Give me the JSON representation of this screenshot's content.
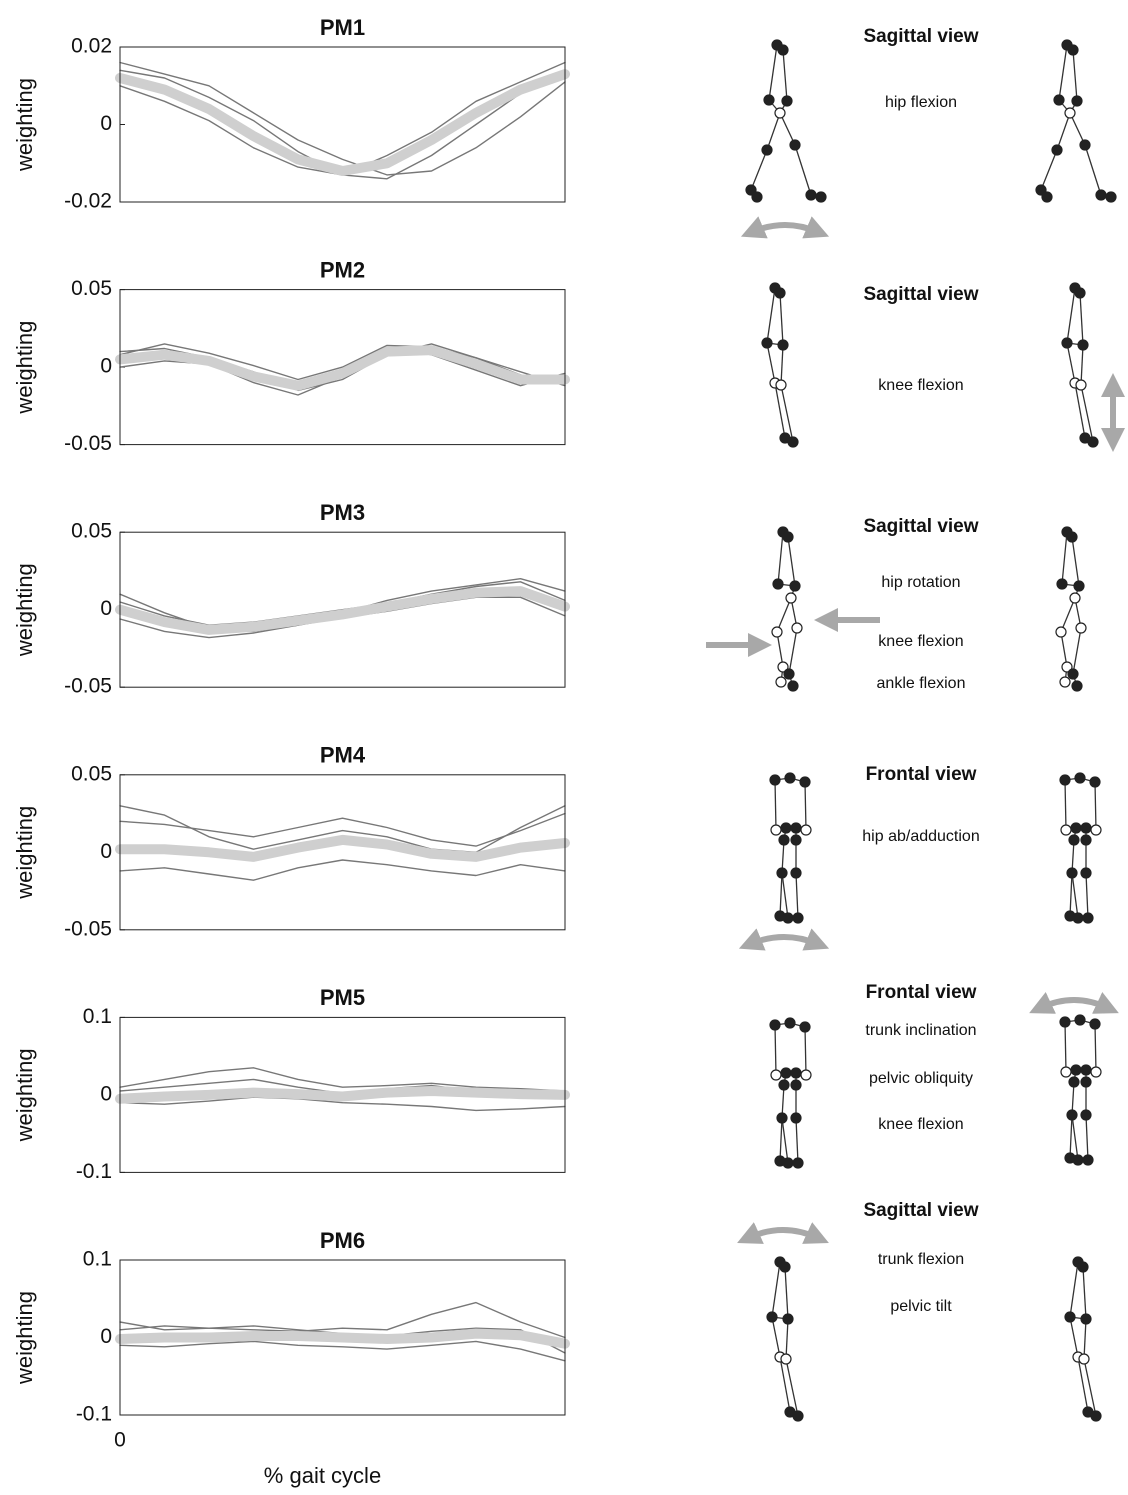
{
  "chart_data": [
    {
      "type": "line",
      "title": "PM1",
      "ylabel": "weighting",
      "x": [
        0,
        10,
        20,
        30,
        40,
        50,
        60,
        70,
        80,
        90,
        100
      ],
      "xlim": [
        0,
        100
      ],
      "ylim": [
        -0.02,
        0.02
      ],
      "yticks": [
        -0.02,
        0,
        0.02
      ],
      "series": [
        {
          "color": "#777777",
          "values": [
            0.014,
            0.012,
            0.007,
            0.001,
            -0.007,
            -0.013,
            -0.014,
            -0.008,
            0.0,
            0.008,
            0.014
          ]
        },
        {
          "color": "#777777",
          "values": [
            0.01,
            0.006,
            0.001,
            -0.006,
            -0.011,
            -0.013,
            -0.008,
            -0.002,
            0.006,
            0.011,
            0.016
          ]
        },
        {
          "color": "#777777",
          "values": [
            0.016,
            0.013,
            0.01,
            0.003,
            -0.004,
            -0.009,
            -0.013,
            -0.012,
            -0.006,
            0.002,
            0.011
          ]
        },
        {
          "color": "#cfcfcf",
          "values": [
            0.012,
            0.009,
            0.004,
            -0.003,
            -0.009,
            -0.012,
            -0.01,
            -0.004,
            0.003,
            0.009,
            0.013
          ]
        }
      ]
    },
    {
      "type": "line",
      "title": "PM2",
      "ylabel": "weighting",
      "x": [
        0,
        10,
        20,
        30,
        40,
        50,
        60,
        70,
        80,
        90,
        100
      ],
      "xlim": [
        0,
        100
      ],
      "ylim": [
        -0.05,
        0.05
      ],
      "yticks": [
        -0.05,
        0,
        0.05
      ],
      "series": [
        {
          "color": "#777777",
          "values": [
            0.01,
            0.012,
            0.006,
            -0.003,
            -0.015,
            -0.008,
            0.008,
            0.015,
            0.006,
            -0.005,
            -0.01
          ]
        },
        {
          "color": "#777777",
          "values": [
            0.0,
            0.004,
            0.002,
            -0.01,
            -0.018,
            -0.006,
            0.012,
            0.008,
            -0.002,
            -0.012,
            -0.004
          ]
        },
        {
          "color": "#777777",
          "values": [
            0.008,
            0.015,
            0.009,
            0.001,
            -0.008,
            0.0,
            0.014,
            0.013,
            0.006,
            -0.003,
            -0.012
          ]
        },
        {
          "color": "#cfcfcf",
          "values": [
            0.005,
            0.008,
            0.004,
            -0.006,
            -0.012,
            -0.004,
            0.01,
            0.011,
            0.002,
            -0.008,
            -0.008
          ]
        }
      ]
    },
    {
      "type": "line",
      "title": "PM3",
      "ylabel": "weighting",
      "x": [
        0,
        10,
        20,
        30,
        40,
        50,
        60,
        70,
        80,
        90,
        100
      ],
      "xlim": [
        0,
        100
      ],
      "ylim": [
        -0.05,
        0.05
      ],
      "yticks": [
        -0.05,
        0,
        0.05
      ],
      "series": [
        {
          "color": "#777777",
          "values": [
            0.005,
            -0.004,
            -0.01,
            -0.008,
            -0.004,
            0.0,
            0.004,
            0.01,
            0.015,
            0.018,
            0.006
          ]
        },
        {
          "color": "#777777",
          "values": [
            -0.006,
            -0.014,
            -0.018,
            -0.015,
            -0.01,
            -0.005,
            -0.001,
            0.004,
            0.008,
            0.008,
            -0.004
          ]
        },
        {
          "color": "#777777",
          "values": [
            0.01,
            -0.002,
            -0.012,
            -0.014,
            -0.01,
            -0.002,
            0.006,
            0.012,
            0.016,
            0.02,
            0.012
          ]
        },
        {
          "color": "#cfcfcf",
          "values": [
            0.0,
            -0.008,
            -0.013,
            -0.011,
            -0.007,
            -0.003,
            0.002,
            0.007,
            0.011,
            0.012,
            0.002
          ]
        }
      ]
    },
    {
      "type": "line",
      "title": "PM4",
      "ylabel": "weighting",
      "x": [
        0,
        10,
        20,
        30,
        40,
        50,
        60,
        70,
        80,
        90,
        100
      ],
      "xlim": [
        0,
        100
      ],
      "ylim": [
        -0.05,
        0.05
      ],
      "yticks": [
        -0.05,
        0,
        0.05
      ],
      "series": [
        {
          "color": "#777777",
          "values": [
            0.02,
            0.018,
            0.014,
            0.01,
            0.016,
            0.022,
            0.016,
            0.008,
            0.004,
            0.014,
            0.025
          ]
        },
        {
          "color": "#777777",
          "values": [
            -0.012,
            -0.01,
            -0.014,
            -0.018,
            -0.01,
            -0.005,
            -0.008,
            -0.012,
            -0.015,
            -0.008,
            -0.012
          ]
        },
        {
          "color": "#777777",
          "values": [
            0.03,
            0.024,
            0.01,
            0.002,
            0.008,
            0.014,
            0.01,
            0.002,
            0.0,
            0.016,
            0.03
          ]
        },
        {
          "color": "#cfcfcf",
          "values": [
            0.002,
            0.002,
            0.0,
            -0.003,
            0.003,
            0.008,
            0.005,
            -0.001,
            -0.003,
            0.003,
            0.006
          ]
        }
      ]
    },
    {
      "type": "line",
      "title": "PM5",
      "ylabel": "weighting",
      "x": [
        0,
        10,
        20,
        30,
        40,
        50,
        60,
        70,
        80,
        90,
        100
      ],
      "xlim": [
        0,
        100
      ],
      "ylim": [
        -0.1,
        0.1
      ],
      "yticks": [
        -0.1,
        0,
        0.1
      ],
      "series": [
        {
          "color": "#777777",
          "values": [
            0.01,
            0.02,
            0.03,
            0.035,
            0.02,
            0.01,
            0.012,
            0.015,
            0.01,
            0.008,
            0.005
          ]
        },
        {
          "color": "#777777",
          "values": [
            -0.01,
            -0.012,
            -0.008,
            -0.003,
            -0.005,
            -0.01,
            -0.012,
            -0.015,
            -0.02,
            -0.018,
            -0.015
          ]
        },
        {
          "color": "#777777",
          "values": [
            0.005,
            0.01,
            0.015,
            0.02,
            0.01,
            0.002,
            0.008,
            0.012,
            0.005,
            0.0,
            -0.005
          ]
        },
        {
          "color": "#cfcfcf",
          "values": [
            -0.005,
            -0.002,
            0.0,
            0.003,
            0.001,
            -0.002,
            0.003,
            0.005,
            0.003,
            0.001,
            0.0
          ]
        }
      ]
    },
    {
      "type": "line",
      "title": "PM6",
      "ylabel": "weighting",
      "xlabel": "% gait cycle",
      "x": [
        0,
        10,
        20,
        30,
        40,
        50,
        60,
        70,
        80,
        90,
        100
      ],
      "xlim": [
        0,
        100
      ],
      "xticks": [
        0
      ],
      "ylim": [
        -0.1,
        0.1
      ],
      "yticks": [
        -0.1,
        0,
        0.1
      ],
      "series": [
        {
          "color": "#777777",
          "values": [
            0.01,
            0.015,
            0.012,
            0.01,
            0.008,
            0.012,
            0.01,
            0.03,
            0.045,
            0.02,
            0.0
          ]
        },
        {
          "color": "#777777",
          "values": [
            -0.01,
            -0.012,
            -0.008,
            -0.005,
            -0.01,
            -0.012,
            -0.015,
            -0.01,
            -0.005,
            -0.015,
            -0.03
          ]
        },
        {
          "color": "#777777",
          "values": [
            0.02,
            0.01,
            0.012,
            0.015,
            0.01,
            0.005,
            0.002,
            0.008,
            0.012,
            0.01,
            -0.02
          ]
        },
        {
          "color": "#cfcfcf",
          "values": [
            -0.002,
            0.0,
            0.0,
            0.002,
            0.002,
            0.0,
            -0.002,
            0.0,
            0.005,
            0.003,
            -0.008
          ]
        }
      ]
    }
  ],
  "diagrams": [
    {
      "title": "Sagittal view",
      "labels": [
        "hip flexion"
      ]
    },
    {
      "title": "Sagittal view",
      "labels": [
        "knee flexion"
      ]
    },
    {
      "title": "Sagittal view",
      "labels": [
        "hip rotation",
        "knee flexion",
        "ankle flexion"
      ]
    },
    {
      "title": "Frontal view",
      "labels": [
        "hip ab/adduction"
      ]
    },
    {
      "title": "Frontal view",
      "labels": [
        "trunk inclination",
        "pelvic obliquity",
        "knee flexion"
      ]
    },
    {
      "title": "Sagittal view",
      "labels": [
        "trunk flexion",
        "pelvic tilt"
      ]
    }
  ]
}
